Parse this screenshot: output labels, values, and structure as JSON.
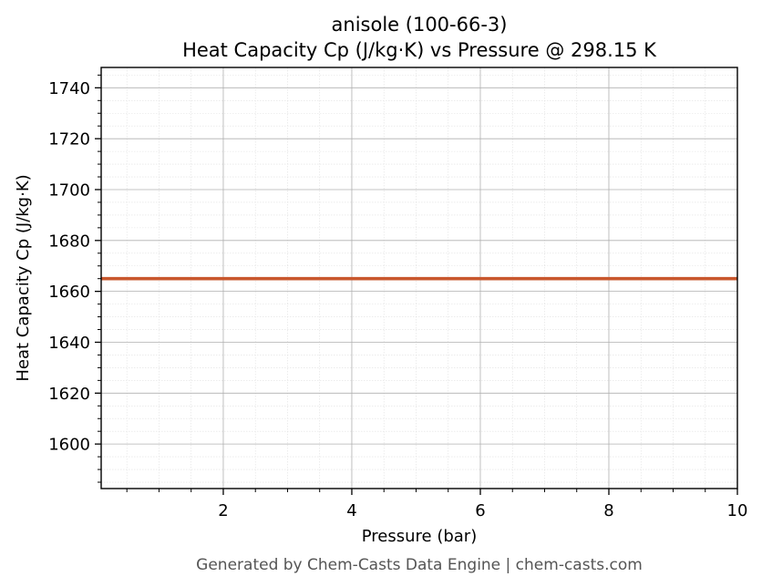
{
  "chart_data": {
    "type": "line",
    "title_line1": "anisole (100-66-3)",
    "title_line2": "Heat Capacity Cp (J/kg·K) vs Pressure @ 298.15 K",
    "xlabel": "Pressure (bar)",
    "ylabel": "Heat Capacity Cp (J/kg·K)",
    "xlim": [
      0.1,
      10
    ],
    "ylim": [
      1582.5,
      1748
    ],
    "xticks": [
      2,
      4,
      6,
      8,
      10
    ],
    "yticks": [
      1600,
      1620,
      1640,
      1660,
      1680,
      1700,
      1720,
      1740
    ],
    "x_minor_step": 0.5,
    "y_minor_step": 5,
    "grid": true,
    "series": [
      {
        "color": "#c8572d",
        "x": [
          0.1,
          10
        ],
        "y": [
          1665,
          1665
        ]
      }
    ]
  },
  "footer": "Generated by Chem-Casts Data Engine | chem-casts.com"
}
